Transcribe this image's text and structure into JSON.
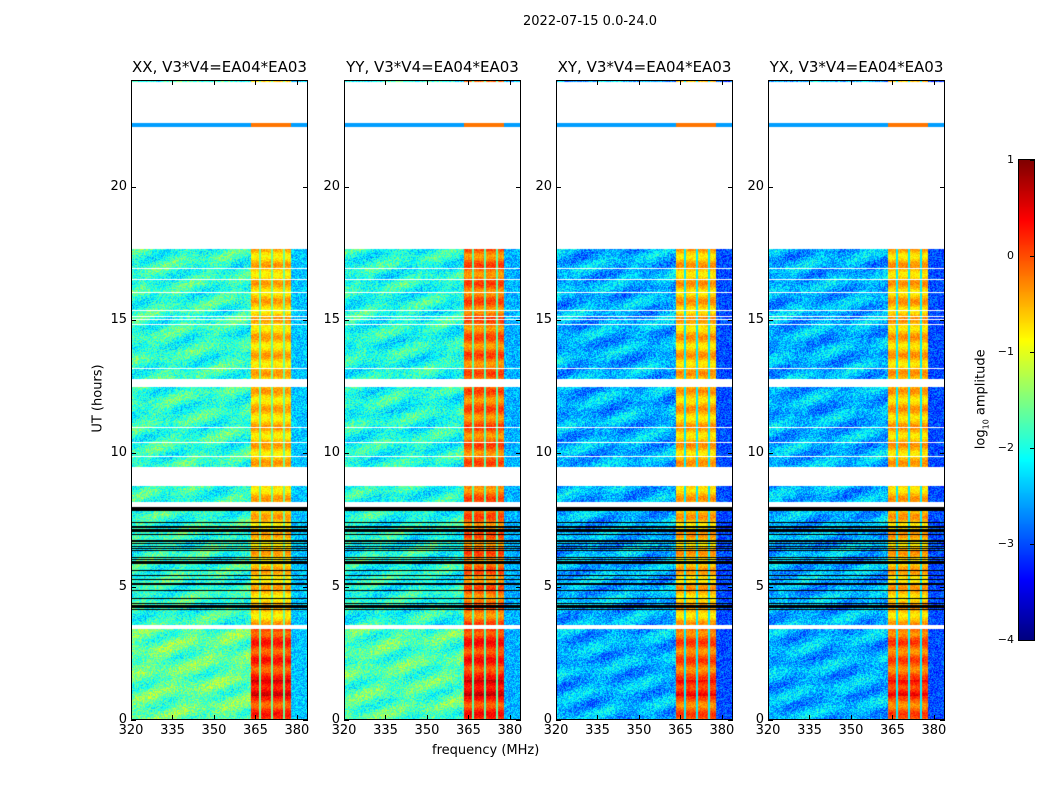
{
  "chart_data": {
    "type": "heatmap",
    "title": "2022-07-15 0.0-24.0",
    "xlabel": "frequency (MHz)",
    "ylabel": "UT (hours)",
    "xlim": [
      320,
      384
    ],
    "ylim": [
      0,
      24
    ],
    "xticks": [
      320,
      335,
      350,
      365,
      380
    ],
    "yticks": [
      0,
      5,
      10,
      15,
      20
    ],
    "colorbar": {
      "label_prefix": "log",
      "label_sub": "10",
      "label_suffix": " amplitude",
      "range": [
        -4,
        1
      ],
      "ticks": [
        1,
        0,
        -1,
        -2,
        -3,
        -4
      ],
      "tick_labels": [
        "1",
        "0",
        "−1",
        "−2",
        "−3",
        "−4"
      ],
      "colormap": "jet"
    },
    "bright_band_mhz": [
      363.5,
      378
    ],
    "band_gaps_mhz": [
      366.5,
      371,
      375.5
    ],
    "flagged_hours": [
      [
        3.4,
        3.55
      ],
      [
        8.0,
        8.2
      ],
      [
        8.8,
        9.5
      ],
      [
        12.5,
        12.8
      ],
      [
        17.7,
        22.3
      ],
      [
        22.45,
        24
      ]
    ],
    "dense_flag_lines_hours": [
      3.6,
      7.8
    ],
    "panels": [
      {
        "title": "XX, V3*V4=EA04*EA03",
        "background_log_amp": -1.9,
        "band_log_amp_day": -0.6,
        "band_log_amp_early": 0.1
      },
      {
        "title": "YY, V3*V4=EA04*EA03",
        "background_log_amp": -2.0,
        "band_log_amp_day": -0.15,
        "band_log_amp_early": 0.15
      },
      {
        "title": "XY, V3*V4=EA04*EA03",
        "background_log_amp": -2.5,
        "band_log_amp_day": -0.55,
        "band_log_amp_early": -0.1
      },
      {
        "title": "YX, V3*V4=EA04*EA03",
        "background_log_amp": -2.5,
        "band_log_amp_day": -0.55,
        "band_log_amp_early": -0.1
      }
    ]
  }
}
